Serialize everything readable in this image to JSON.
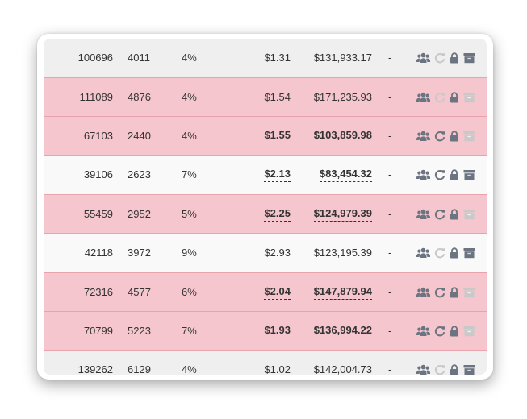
{
  "colors": {
    "pink_row": "#f5c6cd",
    "gray_row": "#efefef",
    "white_row": "#f9f9f9",
    "icon_active": "#6b7480",
    "icon_disabled": "#c9c9c9"
  },
  "rows": [
    {
      "id": "100696",
      "qty": "4011",
      "pct": "4%",
      "price": "$1.31",
      "total": "$131,933.17",
      "status": "-",
      "style": "gray",
      "price_emph": false,
      "total_emph": false,
      "refresh_enabled": false,
      "archive_enabled": true
    },
    {
      "id": "111089",
      "qty": "4876",
      "pct": "4%",
      "price": "$1.54",
      "total": "$171,235.93",
      "status": "-",
      "style": "pink",
      "price_emph": false,
      "total_emph": false,
      "refresh_enabled": false,
      "archive_enabled": false
    },
    {
      "id": "67103",
      "qty": "2440",
      "pct": "4%",
      "price": "$1.55",
      "total": "$103,859.98",
      "status": "-",
      "style": "pink",
      "price_emph": true,
      "total_emph": true,
      "refresh_enabled": true,
      "archive_enabled": false
    },
    {
      "id": "39106",
      "qty": "2623",
      "pct": "7%",
      "price": "$2.13",
      "total": "$83,454.32",
      "status": "-",
      "style": "white",
      "price_emph": true,
      "total_emph": true,
      "refresh_enabled": true,
      "archive_enabled": true
    },
    {
      "id": "55459",
      "qty": "2952",
      "pct": "5%",
      "price": "$2.25",
      "total": "$124,979.39",
      "status": "-",
      "style": "pink",
      "price_emph": true,
      "total_emph": true,
      "refresh_enabled": true,
      "archive_enabled": false
    },
    {
      "id": "42118",
      "qty": "3972",
      "pct": "9%",
      "price": "$2.93",
      "total": "$123,195.39",
      "status": "-",
      "style": "white",
      "price_emph": false,
      "total_emph": false,
      "refresh_enabled": false,
      "archive_enabled": true
    },
    {
      "id": "72316",
      "qty": "4577",
      "pct": "6%",
      "price": "$2.04",
      "total": "$147,879.94",
      "status": "-",
      "style": "pink",
      "price_emph": true,
      "total_emph": true,
      "refresh_enabled": true,
      "archive_enabled": false
    },
    {
      "id": "70799",
      "qty": "5223",
      "pct": "7%",
      "price": "$1.93",
      "total": "$136,994.22",
      "status": "-",
      "style": "pink",
      "price_emph": true,
      "total_emph": true,
      "refresh_enabled": true,
      "archive_enabled": false
    },
    {
      "id": "139262",
      "qty": "6129",
      "pct": "4%",
      "price": "$1.02",
      "total": "$142,004.73",
      "status": "-",
      "style": "gray",
      "price_emph": false,
      "total_emph": false,
      "refresh_enabled": false,
      "archive_enabled": true
    }
  ],
  "row_icons": [
    "users-icon",
    "refresh-icon",
    "lock-icon",
    "archive-icon"
  ]
}
